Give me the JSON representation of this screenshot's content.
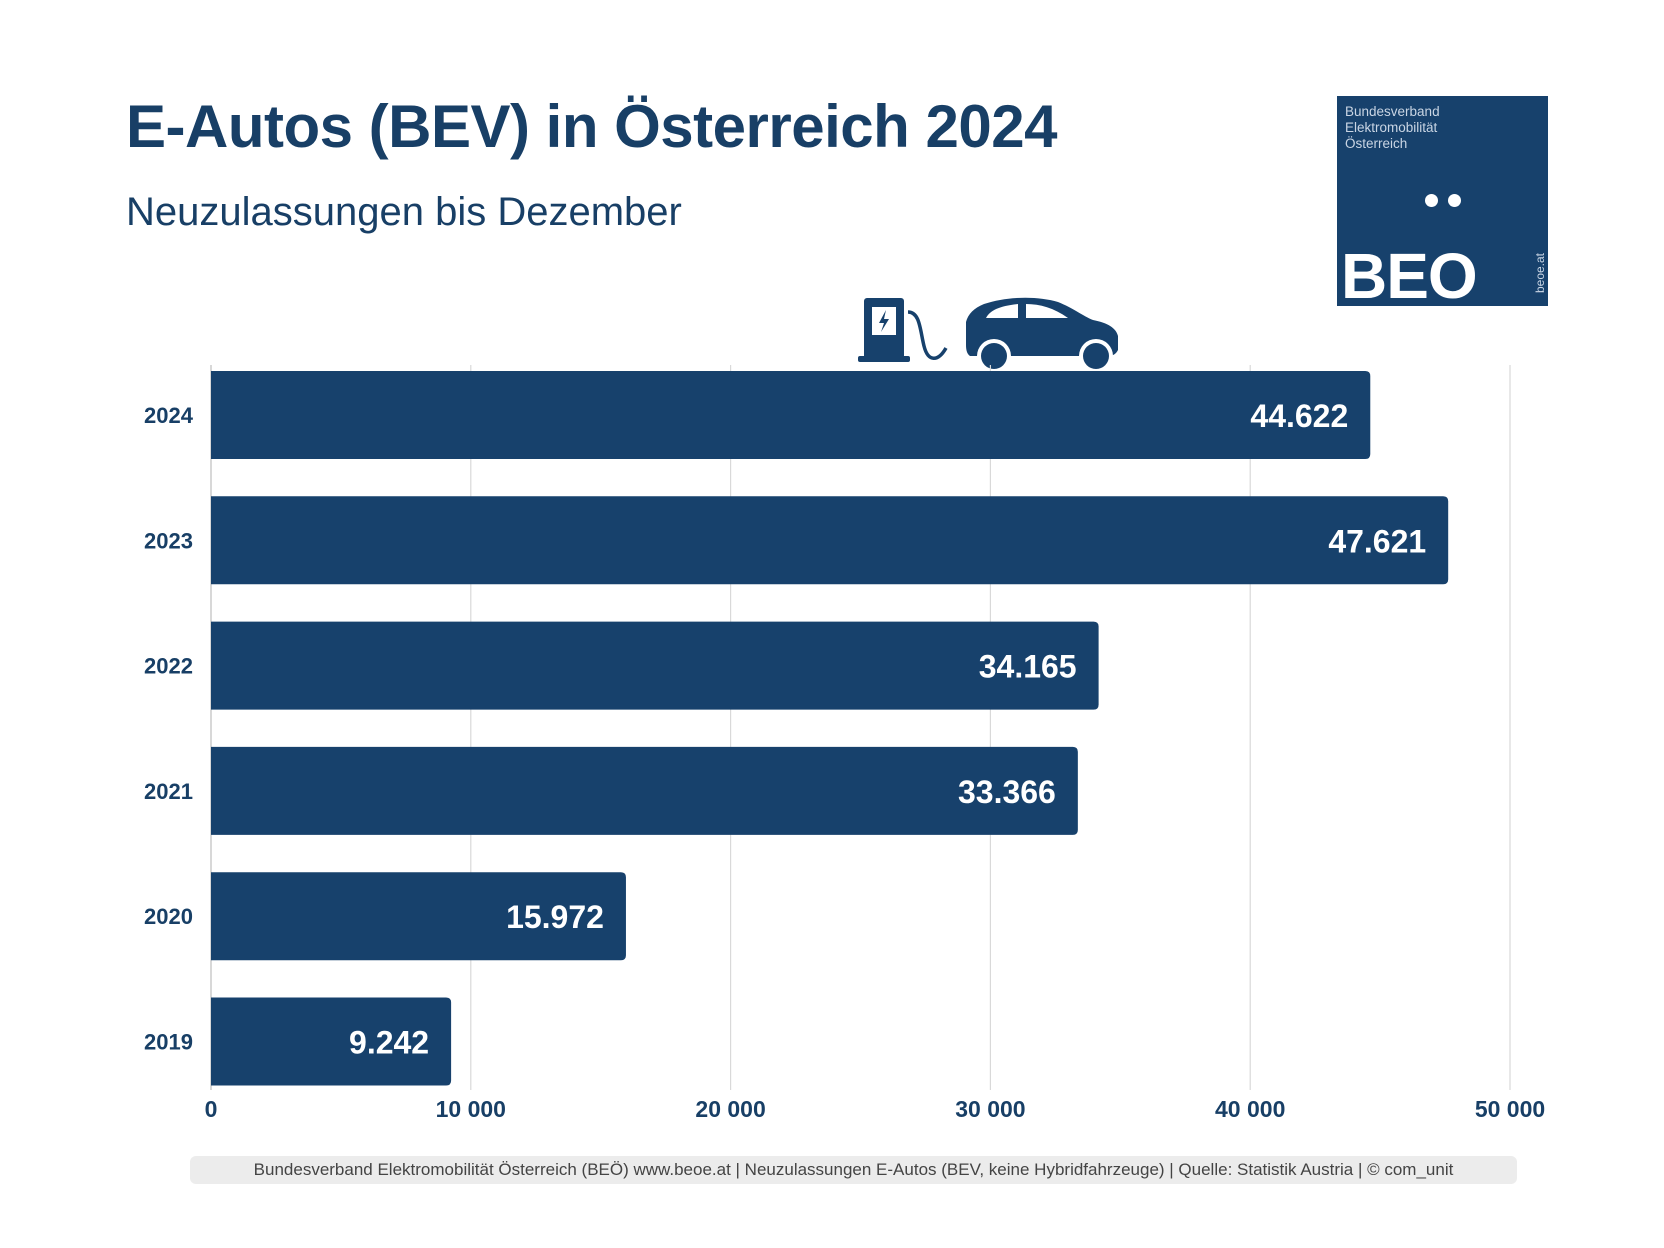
{
  "header": {
    "title": "E-Autos (BEV) in Österreich 2024",
    "subtitle": "Neuzulassungen bis Dezember"
  },
  "logo": {
    "lines": [
      "Bundesverband",
      "Elektromobilität",
      "Österreich"
    ],
    "wordmark": "BEO",
    "url": "beoe.at"
  },
  "icons": [
    "charging-station-icon",
    "electric-car-icon"
  ],
  "colors": {
    "bar": "#17416c",
    "text": "#183f66",
    "grid": "#d9d9d9",
    "bar_label": "#ffffff"
  },
  "footer": {
    "text": "Bundesverband Elektromobilität Österreich (BEÖ) www.beoe.at | Neuzulassungen E-Autos (BEV, keine Hybridfahrzeuge) | Quelle: Statistik Austria | © com_unit"
  },
  "chart_data": {
    "type": "bar",
    "orientation": "horizontal",
    "title": "E-Autos (BEV) in Österreich 2024",
    "subtitle": "Neuzulassungen bis Dezember",
    "categories": [
      "2024",
      "2023",
      "2022",
      "2021",
      "2020",
      "2019"
    ],
    "values": [
      44622,
      47621,
      34165,
      33366,
      15972,
      9242
    ],
    "value_labels": [
      "44.622",
      "47.621",
      "34.165",
      "33.366",
      "15.972",
      "9.242"
    ],
    "xlabel": "",
    "ylabel": "",
    "xlim": [
      0,
      50000
    ],
    "xticks": [
      0,
      10000,
      20000,
      30000,
      40000,
      50000
    ],
    "xtick_labels": [
      "0",
      "10 000",
      "20 000",
      "30 000",
      "40 000",
      "50 000"
    ],
    "grid": true,
    "legend": "none"
  }
}
